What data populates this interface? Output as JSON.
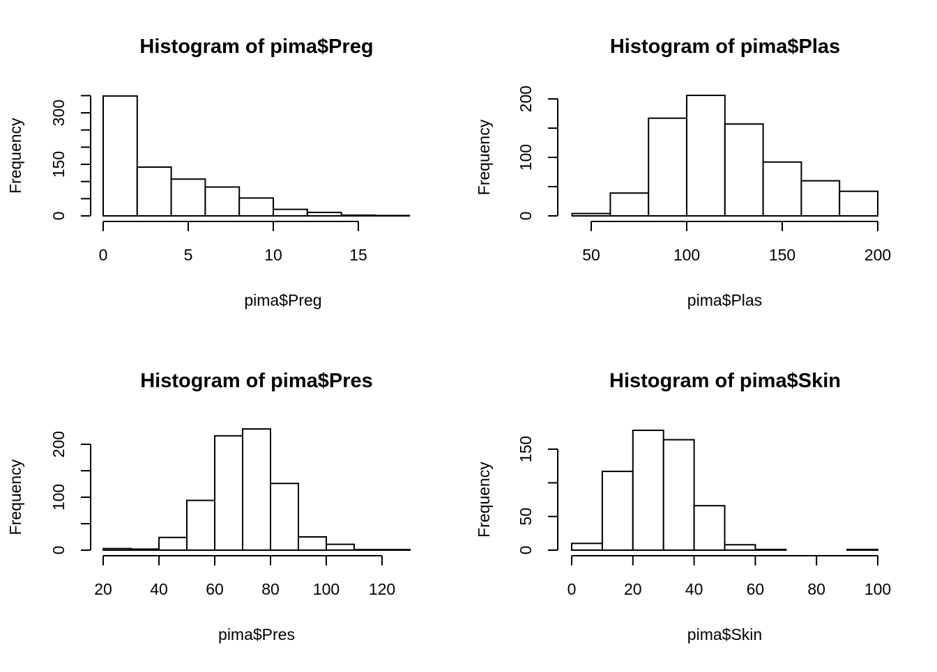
{
  "chart_data": [
    {
      "type": "bar",
      "title": "Histogram of pima$Preg",
      "xlabel": "pima$Preg",
      "ylabel": "Frequency",
      "bin_edges": [
        0,
        2,
        4,
        6,
        8,
        10,
        12,
        14,
        16,
        18
      ],
      "values": [
        349,
        142,
        107,
        84,
        52,
        19,
        10,
        2,
        1
      ],
      "xlim": [
        0,
        18
      ],
      "ylim": [
        0,
        350
      ],
      "x_ticks": [
        0,
        5,
        10,
        15
      ],
      "y_ticks": [
        0,
        150,
        300
      ],
      "y_minor_ticks": [
        0,
        50,
        100,
        150,
        200,
        250,
        300,
        350
      ],
      "grid": false
    },
    {
      "type": "bar",
      "title": "Histogram of pima$Plas",
      "xlabel": "pima$Plas",
      "ylabel": "Frequency",
      "bin_edges": [
        40,
        60,
        80,
        100,
        120,
        140,
        160,
        180,
        200
      ],
      "values": [
        4,
        39,
        167,
        206,
        157,
        92,
        60,
        42
      ],
      "xlim": [
        50,
        200
      ],
      "ylim": [
        0,
        200
      ],
      "x_ticks": [
        50,
        100,
        150,
        200
      ],
      "y_ticks": [
        0,
        100,
        200
      ],
      "y_minor_ticks": [
        0,
        50,
        100,
        150,
        200
      ],
      "grid": false
    },
    {
      "type": "bar",
      "title": "Histogram of pima$Pres",
      "xlabel": "pima$Pres",
      "ylabel": "Frequency",
      "bin_edges": [
        20,
        30,
        40,
        50,
        60,
        70,
        80,
        90,
        100,
        110,
        120,
        130
      ],
      "values": [
        3,
        2,
        24,
        94,
        216,
        229,
        126,
        25,
        11,
        1,
        1
      ],
      "xlim": [
        20,
        130
      ],
      "ylim": [
        0,
        200
      ],
      "x_ticks": [
        20,
        40,
        60,
        80,
        100,
        120
      ],
      "y_ticks": [
        0,
        100,
        200
      ],
      "y_minor_ticks": [
        0,
        50,
        100,
        150,
        200
      ],
      "grid": false
    },
    {
      "type": "bar",
      "title": "Histogram of pima$Skin",
      "xlabel": "pima$Skin",
      "ylabel": "Frequency",
      "bin_edges": [
        0,
        10,
        20,
        30,
        40,
        50,
        60,
        70,
        80,
        90,
        100
      ],
      "values": [
        10,
        117,
        178,
        164,
        66,
        8,
        1,
        0,
        0,
        1
      ],
      "xlim": [
        0,
        100
      ],
      "ylim": [
        0,
        150
      ],
      "x_ticks": [
        0,
        20,
        40,
        60,
        80,
        100
      ],
      "y_ticks": [
        0,
        50,
        150
      ],
      "y_minor_ticks": [
        0,
        50,
        100,
        150
      ],
      "grid": false
    }
  ]
}
